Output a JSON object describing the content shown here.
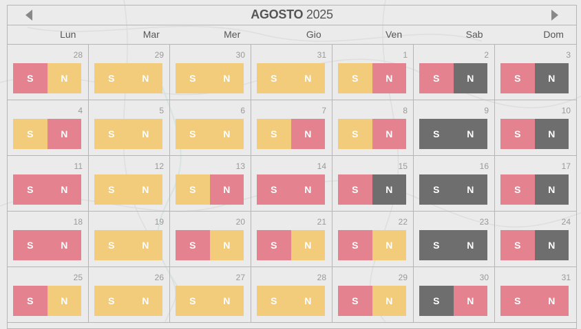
{
  "calendar": {
    "month": "AGOSTO",
    "year": "2025",
    "weekdays": [
      "Lun",
      "Mar",
      "Mer",
      "Gio",
      "Ven",
      "Sab",
      "Dom"
    ],
    "shift_labels": {
      "s": "S",
      "n": "N"
    },
    "colors": {
      "yellow": "#f2cc7a",
      "pink": "#e5828f",
      "gray": "#6e6e6e"
    },
    "days": [
      {
        "day": "28",
        "s": "pink",
        "n": "yellow"
      },
      {
        "day": "29",
        "s": "yellow",
        "n": "yellow"
      },
      {
        "day": "30",
        "s": "yellow",
        "n": "yellow"
      },
      {
        "day": "31",
        "s": "yellow",
        "n": "yellow"
      },
      {
        "day": "1",
        "s": "yellow",
        "n": "pink"
      },
      {
        "day": "2",
        "s": "pink",
        "n": "gray"
      },
      {
        "day": "3",
        "s": "pink",
        "n": "gray"
      },
      {
        "day": "4",
        "s": "yellow",
        "n": "pink"
      },
      {
        "day": "5",
        "s": "yellow",
        "n": "yellow"
      },
      {
        "day": "6",
        "s": "yellow",
        "n": "yellow"
      },
      {
        "day": "7",
        "s": "yellow",
        "n": "pink"
      },
      {
        "day": "8",
        "s": "yellow",
        "n": "pink"
      },
      {
        "day": "9",
        "s": "gray",
        "n": "gray"
      },
      {
        "day": "10",
        "s": "pink",
        "n": "gray"
      },
      {
        "day": "11",
        "s": "pink",
        "n": "pink"
      },
      {
        "day": "12",
        "s": "yellow",
        "n": "yellow"
      },
      {
        "day": "13",
        "s": "yellow",
        "n": "pink"
      },
      {
        "day": "14",
        "s": "pink",
        "n": "pink"
      },
      {
        "day": "15",
        "s": "pink",
        "n": "gray"
      },
      {
        "day": "16",
        "s": "gray",
        "n": "gray"
      },
      {
        "day": "17",
        "s": "pink",
        "n": "gray"
      },
      {
        "day": "18",
        "s": "pink",
        "n": "pink"
      },
      {
        "day": "19",
        "s": "yellow",
        "n": "yellow"
      },
      {
        "day": "20",
        "s": "pink",
        "n": "yellow"
      },
      {
        "day": "21",
        "s": "pink",
        "n": "yellow"
      },
      {
        "day": "22",
        "s": "pink",
        "n": "yellow"
      },
      {
        "day": "23",
        "s": "gray",
        "n": "gray"
      },
      {
        "day": "24",
        "s": "pink",
        "n": "gray"
      },
      {
        "day": "25",
        "s": "pink",
        "n": "yellow"
      },
      {
        "day": "26",
        "s": "yellow",
        "n": "yellow"
      },
      {
        "day": "27",
        "s": "yellow",
        "n": "yellow"
      },
      {
        "day": "28",
        "s": "yellow",
        "n": "yellow"
      },
      {
        "day": "29",
        "s": "pink",
        "n": "yellow"
      },
      {
        "day": "30",
        "s": "gray",
        "n": "pink"
      },
      {
        "day": "31",
        "s": "pink",
        "n": "pink"
      }
    ]
  }
}
